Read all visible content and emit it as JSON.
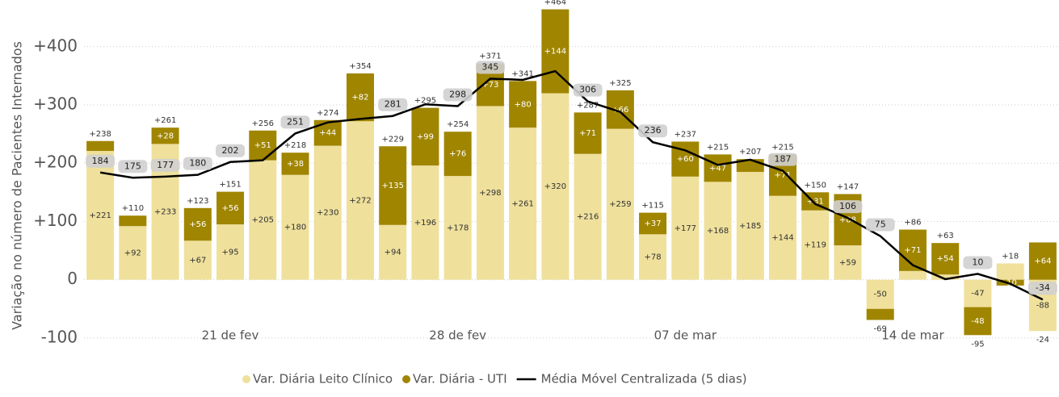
{
  "chart_data": {
    "type": "bar",
    "y_label": "Variação no número de Pacientes Internados",
    "categories": [
      null,
      null,
      null,
      null,
      "21 de fev",
      null,
      null,
      null,
      null,
      null,
      null,
      "28 de fev",
      null,
      null,
      null,
      null,
      null,
      null,
      "07 de mar",
      null,
      null,
      null,
      null,
      null,
      null,
      "14 de mar",
      null,
      null,
      null,
      null
    ],
    "series": [
      {
        "name": "Var. Diária Leito Clínico",
        "color": "#efe09c",
        "values": [
          221,
          92,
          233,
          67,
          95,
          205,
          180,
          230,
          272,
          94,
          196,
          178,
          298,
          261,
          320,
          216,
          259,
          78,
          177,
          168,
          185,
          144,
          119,
          59,
          -50,
          15,
          9,
          -47,
          28,
          -88
        ],
        "value_labels": [
          "+221",
          "+92",
          "+233",
          "+67",
          "+95",
          "+205",
          "+180",
          "+230",
          "+272",
          "+94",
          "+196",
          "+178",
          "+298",
          "+261",
          "+320",
          "+216",
          "+259",
          "+78",
          "+177",
          "+168",
          "+185",
          "+144",
          "+119",
          "+59",
          "-50",
          null,
          null,
          "-47",
          null,
          "-88"
        ]
      },
      {
        "name": "Var. Diária - UTI",
        "color": "#a08500",
        "values": [
          17,
          18,
          28,
          56,
          56,
          51,
          38,
          44,
          82,
          135,
          99,
          76,
          73,
          80,
          144,
          71,
          66,
          37,
          60,
          47,
          22,
          71,
          31,
          88,
          -19,
          71,
          54,
          -48,
          -10,
          64
        ],
        "value_labels": [
          null,
          null,
          "+28",
          "+56",
          "+56",
          "+51",
          "+38",
          "+44",
          "+82",
          "+135",
          "+99",
          "+76",
          "+73",
          "+80",
          "+144",
          "+71",
          "+66",
          "+37",
          "+60",
          "+47",
          null,
          "+71",
          "+31",
          "+88",
          null,
          "+71",
          "+54",
          "-48",
          "-10",
          "+64"
        ]
      },
      {
        "name": "Média Móvel Centralizada (5 dias)",
        "color": "#000000",
        "kind": "line",
        "values": [
          184,
          175,
          177,
          180,
          202,
          205,
          251,
          270,
          276,
          281,
          301,
          298,
          345,
          343,
          358,
          306,
          288,
          236,
          222,
          197,
          206,
          187,
          130,
          106,
          75,
          25,
          1,
          10,
          -7,
          -34
        ],
        "value_labels": [
          "184",
          "175",
          "177",
          "180",
          "202",
          null,
          "251",
          null,
          null,
          "281",
          null,
          "298",
          "345",
          null,
          null,
          "306",
          null,
          "236",
          null,
          null,
          null,
          "187",
          null,
          "106",
          "75",
          null,
          null,
          "10",
          null,
          "-34"
        ]
      }
    ],
    "totals": {
      "values": [
        238,
        110,
        261,
        123,
        151,
        256,
        218,
        274,
        354,
        229,
        295,
        254,
        371,
        341,
        464,
        287,
        325,
        115,
        237,
        215,
        207,
        215,
        150,
        147,
        -69,
        86,
        63,
        -95,
        18,
        -24
      ],
      "value_labels": [
        "+238",
        "+110",
        "+261",
        "+123",
        "+151",
        "+256",
        "+218",
        "+274",
        "+354",
        "+229",
        "+295",
        "+254",
        "+371",
        "+341",
        "+464",
        "+287",
        "+325",
        "+115",
        "+237",
        "+215",
        "+207",
        "+215",
        "+150",
        "+147",
        "-69",
        "+86",
        "+63",
        "-95",
        "+18",
        "-24"
      ]
    },
    "ylim": [
      -150,
      480
    ],
    "yticks": [
      {
        "value": -100,
        "label": "-100"
      },
      0,
      {
        "value": 100,
        "label": "+100"
      },
      {
        "value": 200,
        "label": "+200"
      },
      {
        "value": 300,
        "label": "+300"
      },
      {
        "value": 400,
        "label": "+400"
      }
    ],
    "grid": true
  }
}
